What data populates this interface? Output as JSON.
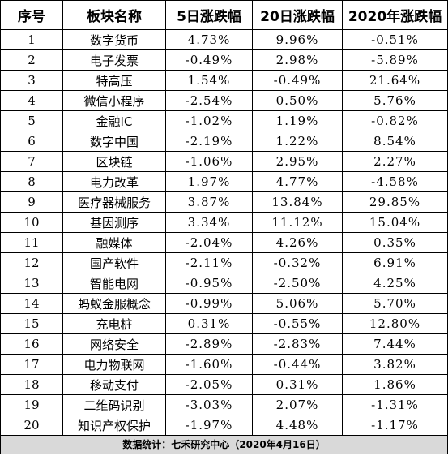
{
  "table": {
    "headers": [
      "序号",
      "板块名称",
      "5日涨跌幅",
      "20日涨跌幅",
      "2020年涨跌幅"
    ],
    "rows": [
      [
        "1",
        "数字货币",
        "4.73%",
        "9.96%",
        "-0.51%"
      ],
      [
        "2",
        "电子发票",
        "-0.49%",
        "2.98%",
        "-5.89%"
      ],
      [
        "3",
        "特高压",
        "1.54%",
        "-0.49%",
        "21.64%"
      ],
      [
        "4",
        "微信小程序",
        "-2.54%",
        "0.50%",
        "5.76%"
      ],
      [
        "5",
        "金融IC",
        "-1.02%",
        "1.19%",
        "-0.82%"
      ],
      [
        "6",
        "数字中国",
        "-2.19%",
        "1.22%",
        "8.54%"
      ],
      [
        "7",
        "区块链",
        "-1.06%",
        "2.95%",
        "2.27%"
      ],
      [
        "8",
        "电力改革",
        "1.97%",
        "4.77%",
        "-4.58%"
      ],
      [
        "9",
        "医疗器械服务",
        "3.87%",
        "13.84%",
        "29.85%"
      ],
      [
        "10",
        "基因测序",
        "3.34%",
        "11.12%",
        "15.04%"
      ],
      [
        "11",
        "融媒体",
        "-2.04%",
        "4.26%",
        "0.35%"
      ],
      [
        "12",
        "国产软件",
        "-2.11%",
        "-0.32%",
        "6.91%"
      ],
      [
        "13",
        "智能电网",
        "-0.95%",
        "-2.50%",
        "4.25%"
      ],
      [
        "14",
        "蚂蚁金服概念",
        "-0.99%",
        "5.06%",
        "5.70%"
      ],
      [
        "15",
        "充电桩",
        "0.31%",
        "-0.55%",
        "12.80%"
      ],
      [
        "16",
        "网络安全",
        "-2.89%",
        "-2.83%",
        "7.44%"
      ],
      [
        "17",
        "电力物联网",
        "-1.60%",
        "-0.44%",
        "3.82%"
      ],
      [
        "18",
        "移动支付",
        "-2.05%",
        "0.31%",
        "1.86%"
      ],
      [
        "19",
        "二维码识别",
        "-3.03%",
        "2.07%",
        "-1.31%"
      ],
      [
        "20",
        "知识产权保护",
        "-1.97%",
        "4.48%",
        "-1.17%"
      ]
    ]
  },
  "footer": {
    "text": "数据统计：七禾研究中心（2020年4月16日）"
  },
  "colors": {
    "footer_bg": "#d9d9d9",
    "border": "#000000"
  }
}
